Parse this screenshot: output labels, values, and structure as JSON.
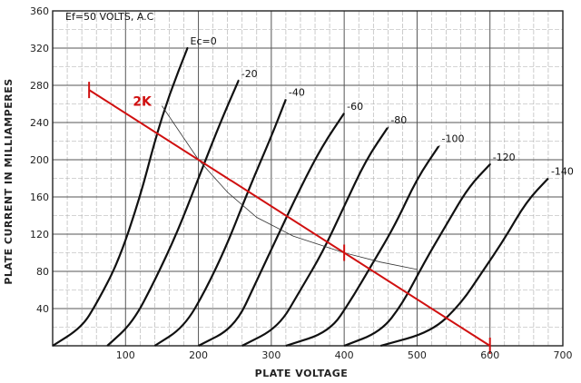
{
  "chart_data": {
    "type": "line",
    "title": "",
    "annotation": "Ef=50 VOLTS, A.C",
    "xlabel": "PLATE VOLTAGE",
    "ylabel": "PLATE CURRENT IN MILLIAMPERES",
    "xlim": [
      0,
      700
    ],
    "ylim": [
      0,
      360
    ],
    "x_ticks": [
      "100",
      "200",
      "300",
      "400",
      "500",
      "600",
      "700"
    ],
    "y_ticks": [
      "40",
      "80",
      "120",
      "160",
      "200",
      "240",
      "280",
      "320",
      "360"
    ],
    "grid": true,
    "series": [
      {
        "name": "Ec=0",
        "x": [
          0,
          40,
          60,
          90,
          120,
          140,
          160,
          185
        ],
        "y": [
          0,
          20,
          45,
          90,
          160,
          220,
          270,
          320
        ]
      },
      {
        "name": "-20",
        "x": [
          75,
          110,
          140,
          170,
          200,
          230,
          255
        ],
        "y": [
          0,
          25,
          70,
          120,
          180,
          240,
          285
        ]
      },
      {
        "name": "-40",
        "x": [
          140,
          180,
          210,
          240,
          270,
          300,
          320
        ],
        "y": [
          0,
          20,
          60,
          110,
          170,
          225,
          265
        ]
      },
      {
        "name": "-60",
        "x": [
          200,
          250,
          280,
          310,
          340,
          370,
          400
        ],
        "y": [
          0,
          20,
          70,
          120,
          170,
          215,
          250
        ]
      },
      {
        "name": "-80",
        "x": [
          260,
          310,
          340,
          370,
          400,
          430,
          460
        ],
        "y": [
          0,
          20,
          60,
          100,
          150,
          200,
          235
        ]
      },
      {
        "name": "-100",
        "x": [
          320,
          380,
          410,
          440,
          470,
          500,
          530
        ],
        "y": [
          0,
          15,
          50,
          90,
          130,
          180,
          215
        ]
      },
      {
        "name": "-120",
        "x": [
          400,
          450,
          480,
          510,
          540,
          570,
          600
        ],
        "y": [
          0,
          15,
          45,
          90,
          130,
          170,
          195
        ]
      },
      {
        "name": "-140",
        "x": [
          450,
          520,
          560,
          590,
          620,
          650,
          680
        ],
        "y": [
          0,
          15,
          45,
          80,
          115,
          155,
          180
        ]
      }
    ],
    "dissipation_curve": {
      "x": [
        150,
        200,
        240,
        280,
        330,
        400,
        450,
        500
      ],
      "y": [
        258,
        200,
        165,
        138,
        118,
        100,
        90,
        82
      ]
    },
    "load_line": {
      "label": "2K",
      "x": [
        50,
        600
      ],
      "y": [
        275,
        0
      ],
      "marks_x": [
        50,
        400,
        600
      ]
    }
  }
}
